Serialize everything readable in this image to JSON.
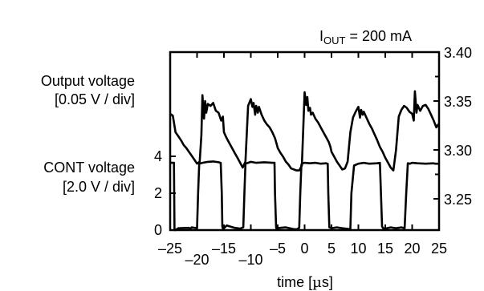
{
  "chart_data": {
    "type": "line",
    "condition_label": "IOUT = 200 mA",
    "condition_main": "I",
    "condition_sub": "OUT",
    "condition_rest": " = 200 mA",
    "xlabel": "time [µs]",
    "xlabel_pre": "time [",
    "xlabel_mu": "µ",
    "xlabel_post": "s]",
    "xlim": [
      -25,
      25
    ],
    "x_ticks_upper": [
      "–25",
      "–15",
      "–5",
      "0",
      "5",
      "10",
      "15",
      "20",
      "25"
    ],
    "x_ticks_lower": [
      "–20",
      "–10"
    ],
    "grid": false,
    "series": [
      {
        "name": "Output voltage",
        "label_line1": "Output voltage",
        "label_line2": "[0.05 V / div]",
        "axis": "right",
        "ylim": [
          3.2,
          3.4
        ],
        "y_ticks": [
          "3.40",
          "3.35",
          "3.30",
          "3.25"
        ],
        "color": "#000000",
        "x": [
          -25.0,
          -24.5,
          -24.0,
          -23.5,
          -23.0,
          -22.5,
          -22.0,
          -21.0,
          -20.0,
          -19.5,
          -19.2,
          -19.0,
          -18.7,
          -18.5,
          -18.3,
          -18.0,
          -17.5,
          -17.0,
          -16.5,
          -16.0,
          -15.5,
          -15.2,
          -15.0,
          -14.5,
          -14.0,
          -13.5,
          -13.0,
          -12.5,
          -12.0,
          -11.5,
          -11.0,
          -10.5,
          -10.0,
          -9.7,
          -9.5,
          -9.2,
          -9.0,
          -8.7,
          -8.5,
          -8.0,
          -7.5,
          -7.0,
          -6.5,
          -6.0,
          -5.5,
          -5.2,
          -5.0,
          -4.5,
          -4.0,
          -3.5,
          -3.0,
          -2.5,
          -2.0,
          -1.5,
          -1.0,
          -0.5,
          0.0,
          0.3,
          0.5,
          0.7,
          1.0,
          1.2,
          1.5,
          2.0,
          2.5,
          3.0,
          3.5,
          4.0,
          4.5,
          4.8,
          5.0,
          5.5,
          6.0,
          6.5,
          7.0,
          7.5,
          8.0,
          8.5,
          9.0,
          9.5,
          10.0,
          10.3,
          10.5,
          10.8,
          11.0,
          11.5,
          12.0,
          12.5,
          13.0,
          13.5,
          14.0,
          14.5,
          15.0,
          15.5,
          16.0,
          16.5,
          17.0,
          17.5,
          18.0,
          18.5,
          19.0,
          19.5,
          20.0,
          20.3,
          20.5,
          20.8,
          21.0,
          21.5,
          22.0,
          22.5,
          23.0,
          23.5,
          24.0,
          24.5,
          25.0
        ],
        "values": [
          3.337,
          3.335,
          3.318,
          3.314,
          3.31,
          3.305,
          3.302,
          3.294,
          3.286,
          3.288,
          3.315,
          3.356,
          3.332,
          3.35,
          3.338,
          3.347,
          3.345,
          3.348,
          3.34,
          3.338,
          3.33,
          3.334,
          3.318,
          3.312,
          3.307,
          3.302,
          3.297,
          3.292,
          3.287,
          3.282,
          3.288,
          3.345,
          3.352,
          3.344,
          3.348,
          3.336,
          3.345,
          3.338,
          3.344,
          3.336,
          3.33,
          3.326,
          3.323,
          3.318,
          3.312,
          3.306,
          3.302,
          3.297,
          3.293,
          3.288,
          3.285,
          3.281,
          3.28,
          3.279,
          3.279,
          3.284,
          3.359,
          3.346,
          3.354,
          3.34,
          3.343,
          3.336,
          3.338,
          3.332,
          3.328,
          3.323,
          3.318,
          3.313,
          3.308,
          3.303,
          3.298,
          3.293,
          3.288,
          3.284,
          3.28,
          3.281,
          3.288,
          3.318,
          3.333,
          3.339,
          3.344,
          3.333,
          3.341,
          3.336,
          3.339,
          3.333,
          3.327,
          3.322,
          3.316,
          3.31,
          3.303,
          3.298,
          3.292,
          3.287,
          3.282,
          3.279,
          3.3,
          3.334,
          3.341,
          3.345,
          3.343,
          3.339,
          3.337,
          3.33,
          3.36,
          3.338,
          3.346,
          3.34,
          3.345,
          3.346,
          3.342,
          3.336,
          3.33,
          3.323,
          3.327
        ]
      },
      {
        "name": "CONT voltage",
        "label_line1": "CONT voltage",
        "label_line2": "[2.0 V / div]",
        "axis": "left",
        "ylim": [
          0,
          4
        ],
        "y_ticks": [
          "4",
          "2",
          "0"
        ],
        "color": "#000000",
        "x": [
          -25.0,
          -24.3,
          -24.2,
          -24.0,
          -23.5,
          -21.5,
          -21.2,
          -21.0,
          -20.0,
          -19.8,
          -19.6,
          -19.0,
          -18.0,
          -17.0,
          -16.0,
          -15.6,
          -15.4,
          -15.3,
          -15.2,
          -15.0,
          -14.5,
          -13.0,
          -12.0,
          -11.4,
          -11.2,
          -11.0,
          -10.5,
          -10.0,
          -9.0,
          -7.5,
          -6.0,
          -5.6,
          -5.5,
          -5.3,
          -5.2,
          -5.0,
          -4.5,
          -3.5,
          -2.0,
          -1.4,
          -1.0,
          -0.8,
          -0.6,
          -0.4,
          0.0,
          1.0,
          2.0,
          3.0,
          4.0,
          4.3,
          4.4,
          4.6,
          5.0,
          6.0,
          7.0,
          8.5,
          8.7,
          9.2,
          10.0,
          11.0,
          12.0,
          13.5,
          14.0,
          14.2,
          14.4,
          14.6,
          15.0,
          16.0,
          17.0,
          18.0,
          18.6,
          18.9,
          19.2,
          19.6,
          20.0,
          21.0,
          22.5,
          24.0,
          24.3,
          24.4,
          25.0
        ],
        "values": [
          3.65,
          3.65,
          0.0,
          0.0,
          0.1,
          0.12,
          0.06,
          0.15,
          0.1,
          2.0,
          3.6,
          3.65,
          3.7,
          3.72,
          3.68,
          3.65,
          2.0,
          0.2,
          0.08,
          0.1,
          0.25,
          0.12,
          0.08,
          0.15,
          2.0,
          3.6,
          3.65,
          3.7,
          3.65,
          3.68,
          3.65,
          3.65,
          2.0,
          0.15,
          0.05,
          0.1,
          0.12,
          0.15,
          0.05,
          0.05,
          0.12,
          2.0,
          3.55,
          3.62,
          3.65,
          3.62,
          3.65,
          3.6,
          3.62,
          3.6,
          2.0,
          0.15,
          0.1,
          0.15,
          0.1,
          0.05,
          2.0,
          3.5,
          3.6,
          3.65,
          3.6,
          3.62,
          3.65,
          2.0,
          0.2,
          0.1,
          0.08,
          0.15,
          0.1,
          0.15,
          0.1,
          2.0,
          3.62,
          3.6,
          3.65,
          3.62,
          3.6,
          3.62,
          3.6,
          3.6,
          3.6
        ]
      }
    ]
  }
}
